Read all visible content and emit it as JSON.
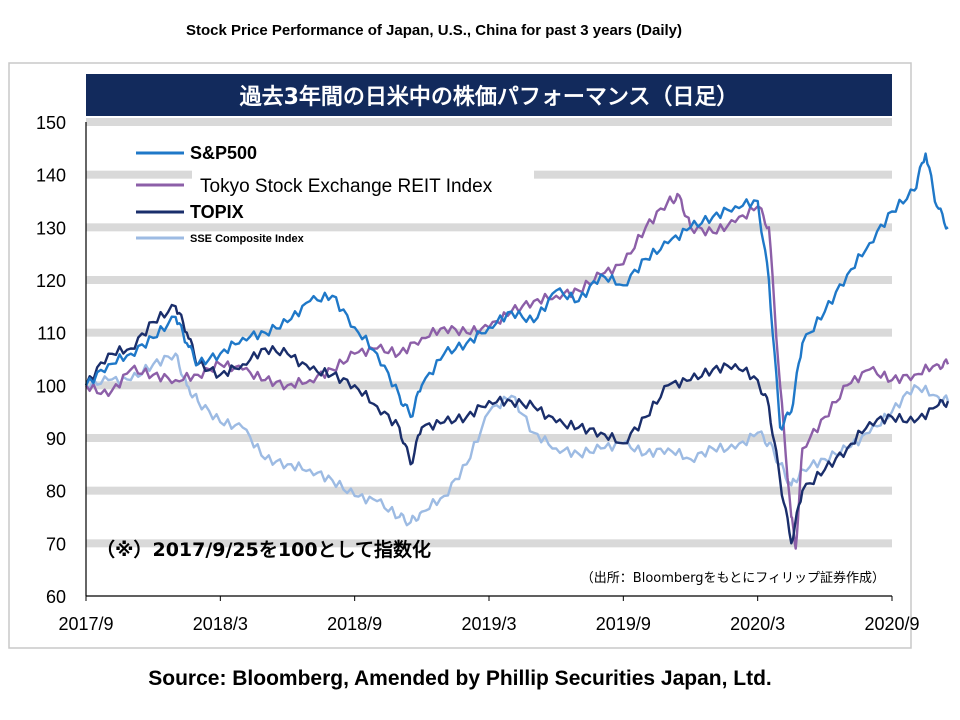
{
  "page": {
    "title": "Stock Price Performance of Japan, U.S., China for past 3 years (Daily)",
    "source": "Source: Bloomberg, Amended by Phillip Securities Japan, Ltd."
  },
  "chart_data": {
    "type": "line",
    "title": "過去3年間の日米中の株価パフォーマンス（日足）",
    "note": "（※）2017/9/25を100として指数化",
    "credit": "（出所：Bloombergをもとにフィリップ証券作成）",
    "xlabel": "",
    "ylabel": "",
    "ylim": [
      60,
      150
    ],
    "yticks": [
      60,
      70,
      80,
      90,
      100,
      110,
      120,
      130,
      140,
      150
    ],
    "xlim": [
      "2017-09",
      "2020-09"
    ],
    "xtick_labels": [
      "2017/9",
      "2018/3",
      "2018/9",
      "2019/3",
      "2019/9",
      "2020/3",
      "2020/9"
    ],
    "grid": "horizontal bands",
    "legend_position": "top-left",
    "series": [
      {
        "name": "S&P500",
        "color": "#1f78c8",
        "values": [
          [
            0,
            100
          ],
          [
            1,
            104
          ],
          [
            2,
            106
          ],
          [
            3,
            109
          ],
          [
            4,
            113
          ],
          [
            4.5,
            108
          ],
          [
            5,
            104
          ],
          [
            6,
            106
          ],
          [
            7,
            109
          ],
          [
            8,
            110
          ],
          [
            9,
            112
          ],
          [
            10,
            116
          ],
          [
            11,
            117
          ],
          [
            12,
            111
          ],
          [
            13,
            106
          ],
          [
            14,
            98
          ],
          [
            14.5,
            94
          ],
          [
            15,
            100
          ],
          [
            16,
            106
          ],
          [
            17,
            108
          ],
          [
            18,
            111
          ],
          [
            19,
            114
          ],
          [
            20,
            112
          ],
          [
            21,
            118
          ],
          [
            22,
            116
          ],
          [
            23,
            121
          ],
          [
            24,
            119
          ],
          [
            25,
            124
          ],
          [
            26,
            127
          ],
          [
            27,
            130
          ],
          [
            28,
            132
          ],
          [
            29,
            134
          ],
          [
            30,
            135
          ],
          [
            30.5,
            120
          ],
          [
            31,
            92
          ],
          [
            31.5,
            95
          ],
          [
            32,
            108
          ],
          [
            33,
            114
          ],
          [
            34,
            121
          ],
          [
            35,
            127
          ],
          [
            36,
            133
          ],
          [
            37,
            137
          ],
          [
            37.5,
            144
          ],
          [
            38,
            134
          ],
          [
            38.5,
            130
          ]
        ]
      },
      {
        "name": "Tokyo Stock Exchange REIT Index",
        "color": "#8c5fa8",
        "values": [
          [
            0,
            100
          ],
          [
            1,
            98
          ],
          [
            2,
            103
          ],
          [
            3,
            102
          ],
          [
            4,
            101
          ],
          [
            5,
            102
          ],
          [
            6,
            104
          ],
          [
            7,
            103
          ],
          [
            8,
            101
          ],
          [
            9,
            100
          ],
          [
            10,
            101
          ],
          [
            11,
            103
          ],
          [
            12,
            106
          ],
          [
            13,
            107
          ],
          [
            14,
            106
          ],
          [
            15,
            109
          ],
          [
            16,
            111
          ],
          [
            17,
            110
          ],
          [
            18,
            111
          ],
          [
            19,
            114
          ],
          [
            20,
            116
          ],
          [
            21,
            117
          ],
          [
            22,
            118
          ],
          [
            23,
            121
          ],
          [
            24,
            123
          ],
          [
            25,
            130
          ],
          [
            26,
            135
          ],
          [
            26.5,
            136
          ],
          [
            27,
            130
          ],
          [
            28,
            129
          ],
          [
            29,
            131
          ],
          [
            30,
            134
          ],
          [
            30.5,
            130
          ],
          [
            31,
            100
          ],
          [
            31.5,
            75
          ],
          [
            31.7,
            69
          ],
          [
            32,
            88
          ],
          [
            33,
            94
          ],
          [
            34,
            100
          ],
          [
            35,
            103
          ],
          [
            36,
            101
          ],
          [
            37,
            102
          ],
          [
            38,
            104
          ],
          [
            38.5,
            104
          ]
        ]
      },
      {
        "name": "TOPIX",
        "color": "#1a2e6b",
        "values": [
          [
            0,
            100
          ],
          [
            1,
            106
          ],
          [
            2,
            107
          ],
          [
            3,
            112
          ],
          [
            4,
            115
          ],
          [
            4.5,
            110
          ],
          [
            5,
            104
          ],
          [
            6,
            102
          ],
          [
            7,
            104
          ],
          [
            8,
            107
          ],
          [
            9,
            106
          ],
          [
            10,
            103
          ],
          [
            11,
            102
          ],
          [
            12,
            100
          ],
          [
            13,
            96
          ],
          [
            14,
            92
          ],
          [
            14.5,
            85
          ],
          [
            15,
            92
          ],
          [
            16,
            93
          ],
          [
            17,
            94
          ],
          [
            18,
            97
          ],
          [
            19,
            97
          ],
          [
            20,
            96
          ],
          [
            21,
            93
          ],
          [
            22,
            92
          ],
          [
            23,
            91
          ],
          [
            24,
            89
          ],
          [
            25,
            94
          ],
          [
            26,
            100
          ],
          [
            27,
            101
          ],
          [
            28,
            103
          ],
          [
            29,
            104
          ],
          [
            30,
            101
          ],
          [
            30.5,
            96
          ],
          [
            31,
            82
          ],
          [
            31.5,
            70
          ],
          [
            32,
            80
          ],
          [
            33,
            84
          ],
          [
            34,
            88
          ],
          [
            35,
            93
          ],
          [
            36,
            94
          ],
          [
            37,
            93
          ],
          [
            38,
            96
          ],
          [
            38.5,
            97
          ]
        ]
      },
      {
        "name": "SSE Composite Index",
        "color": "#9dbbe3",
        "values": [
          [
            0,
            100
          ],
          [
            1,
            101
          ],
          [
            2,
            101
          ],
          [
            3,
            104
          ],
          [
            4,
            106
          ],
          [
            4.5,
            100
          ],
          [
            5,
            97
          ],
          [
            6,
            93
          ],
          [
            7,
            92
          ],
          [
            8,
            86
          ],
          [
            9,
            85
          ],
          [
            10,
            84
          ],
          [
            11,
            82
          ],
          [
            12,
            79
          ],
          [
            13,
            78
          ],
          [
            14,
            75
          ],
          [
            14.5,
            74
          ],
          [
            15,
            76
          ],
          [
            16,
            79
          ],
          [
            17,
            85
          ],
          [
            18,
            95
          ],
          [
            19,
            98
          ],
          [
            20,
            91
          ],
          [
            21,
            88
          ],
          [
            22,
            87
          ],
          [
            23,
            88
          ],
          [
            24,
            89
          ],
          [
            25,
            87
          ],
          [
            26,
            88
          ],
          [
            27,
            86
          ],
          [
            28,
            88
          ],
          [
            29,
            88
          ],
          [
            30,
            91
          ],
          [
            30.5,
            89
          ],
          [
            31,
            85
          ],
          [
            31.5,
            81
          ],
          [
            32,
            84
          ],
          [
            33,
            86
          ],
          [
            34,
            88
          ],
          [
            35,
            91
          ],
          [
            36,
            95
          ],
          [
            37,
            100
          ],
          [
            38,
            98
          ],
          [
            38.5,
            97
          ]
        ]
      }
    ]
  }
}
